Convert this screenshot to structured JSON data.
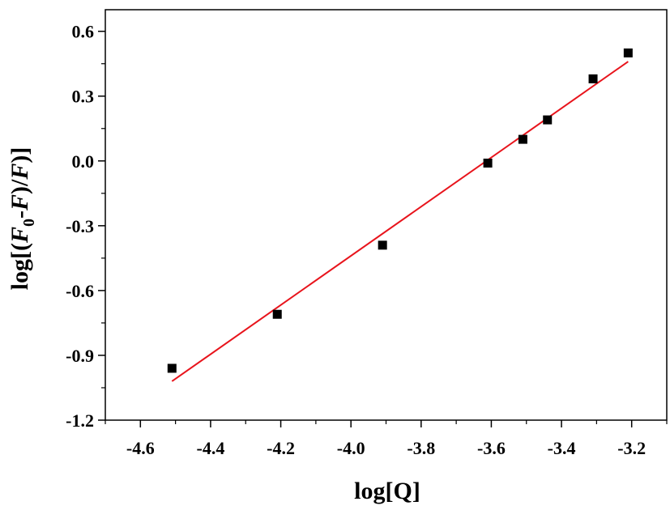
{
  "chart_data": {
    "type": "scatter",
    "title": "",
    "xlabel": "log[Q]",
    "ylabel": {
      "prefix": "log[(",
      "f1": "F",
      "sub": "0",
      "mid1": "-",
      "f2": "F",
      "mid2": ")/",
      "f3": "F",
      "suffix": ")]"
    },
    "xlim": [
      -4.7,
      -3.1
    ],
    "ylim": [
      -1.2,
      0.7
    ],
    "x_ticks": [
      -4.6,
      -4.4,
      -4.2,
      -4.0,
      -3.8,
      -3.6,
      -3.4,
      -3.2
    ],
    "x_tick_labels": [
      "-4.6",
      "-4.4",
      "-4.2",
      "-4.0",
      "-3.8",
      "-3.6",
      "-3.4",
      "-3.2"
    ],
    "y_ticks": [
      -1.2,
      -0.9,
      -0.6,
      -0.3,
      0.0,
      0.3,
      0.6
    ],
    "y_tick_labels": [
      "-1.2",
      "-0.9",
      "-0.6",
      "-0.3",
      "0.0",
      "0.3",
      "0.6"
    ],
    "grid": false,
    "series": [
      {
        "kind": "points",
        "marker": "square",
        "color": "#000000",
        "x": [
          -4.51,
          -4.21,
          -3.91,
          -3.61,
          -3.51,
          -3.44,
          -3.31,
          -3.21
        ],
        "y": [
          -0.96,
          -0.71,
          -0.39,
          -0.01,
          0.1,
          0.19,
          0.38,
          0.5
        ]
      },
      {
        "kind": "fit-line",
        "color": "#e8141c",
        "x": [
          -4.51,
          -3.21
        ],
        "y": [
          -1.02,
          0.46
        ]
      }
    ]
  }
}
